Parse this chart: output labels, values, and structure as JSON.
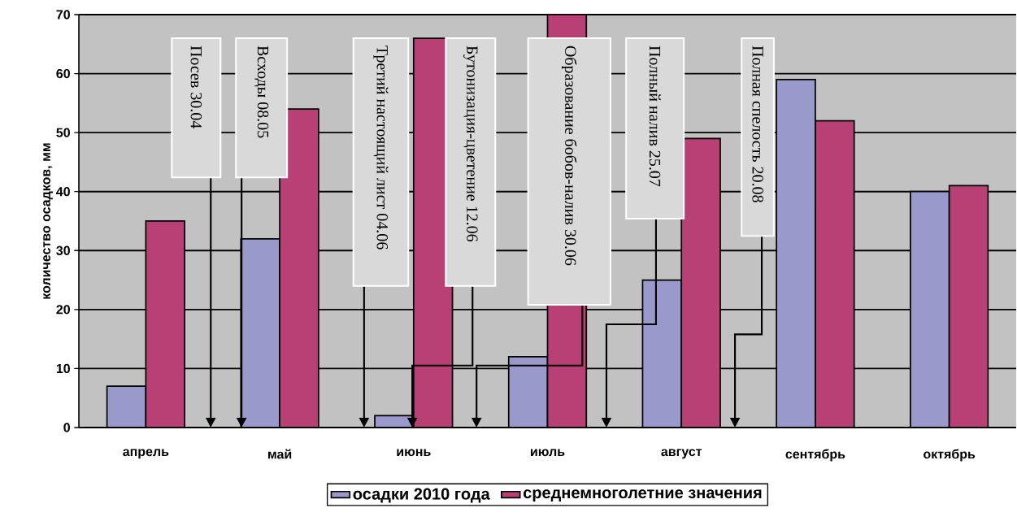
{
  "chart_data": {
    "type": "bar",
    "ylabel": "количество осадков,  мм",
    "categories": [
      "апрель",
      "май",
      "июнь",
      "июль",
      "август",
      "сентябрь",
      "октябрь"
    ],
    "series": [
      {
        "name": "осадки 2010 года",
        "color": "#9999cc",
        "values": [
          7,
          32,
          2,
          12,
          25,
          59,
          40
        ]
      },
      {
        "name": "среднемноголетние значения",
        "color": "#b84075",
        "values": [
          35,
          54,
          66,
          70,
          49,
          52,
          41
        ]
      }
    ],
    "ylim": [
      0,
      70
    ],
    "yticks": [
      0,
      10,
      20,
      30,
      40,
      50,
      60,
      70
    ],
    "grid": "y",
    "legend": "bottom",
    "annotations": [
      "Посев 30.04",
      "Всходы 08.05",
      "Третий настоящий лист 04.06",
      "Бутонизация-цветение  12.06",
      "Образование бобов-налив 30.06",
      "Полный налив  25.07",
      "Полная спелость  20.08"
    ]
  }
}
